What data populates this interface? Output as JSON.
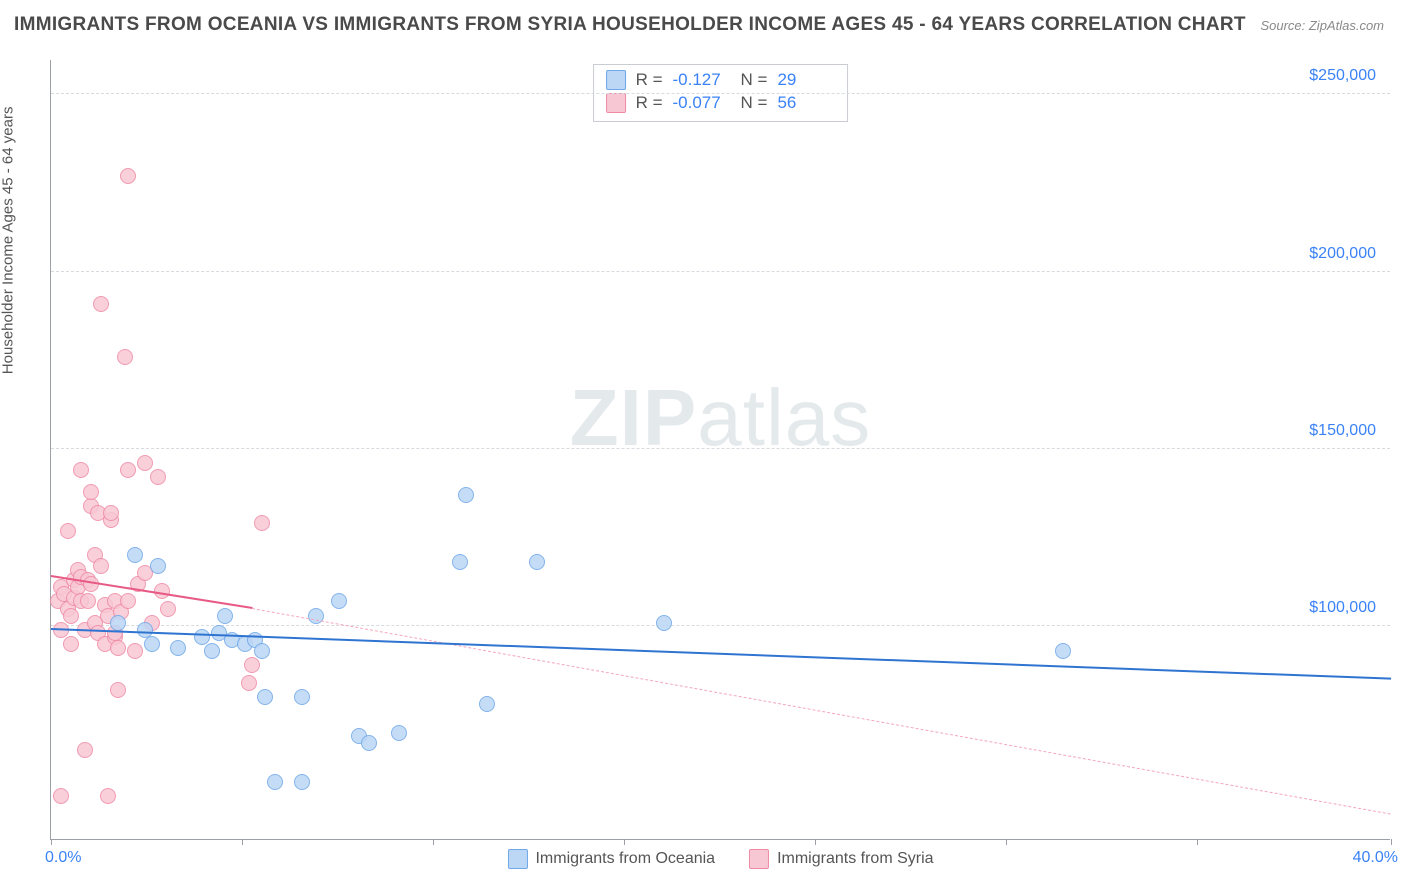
{
  "title": "IMMIGRANTS FROM OCEANIA VS IMMIGRANTS FROM SYRIA HOUSEHOLDER INCOME AGES 45 - 64 YEARS CORRELATION CHART",
  "source": "Source: ZipAtlas.com",
  "watermark_bold": "ZIP",
  "watermark_rest": "atlas",
  "chart": {
    "type": "scatter",
    "background_color": "#ffffff",
    "ylabel": "Householder Income Ages 45 - 64 years",
    "xlim": [
      0.0,
      40.0
    ],
    "ylim": [
      40000,
      260000
    ],
    "xtick_positions": [
      0,
      5.7,
      11.4,
      17.1,
      22.8,
      28.5,
      34.2,
      40.0
    ],
    "xaxis_min_label": "0.0%",
    "xaxis_max_label": "40.0%",
    "ygrid": [
      {
        "value": 100000,
        "label": "$100,000"
      },
      {
        "value": 150000,
        "label": "$150,000"
      },
      {
        "value": 200000,
        "label": "$200,000"
      },
      {
        "value": 250000,
        "label": "$250,000"
      }
    ],
    "grid_color": "#d7dbe0",
    "axis_color": "#9aa0a6",
    "point_radius": 8,
    "point_border_width": 1.5,
    "stats": [
      {
        "key": "oceania",
        "r_label": "R =",
        "r": "-0.127",
        "n_label": "N =",
        "n": "29"
      },
      {
        "key": "syria",
        "r_label": "R =",
        "r": "-0.077",
        "n_label": "N =",
        "n": "56"
      }
    ],
    "series": {
      "oceania": {
        "label": "Immigrants from Oceania",
        "fill_color": "#bcd6f5",
        "stroke_color": "#6ea8e8",
        "trend_solid": {
          "x1": 0.0,
          "y1": 99000,
          "x2": 40.0,
          "y2": 85000,
          "color": "#2f74d0",
          "width": 2.5
        },
        "points": [
          {
            "x": 2.5,
            "y": 120000
          },
          {
            "x": 3.2,
            "y": 117000
          },
          {
            "x": 2.0,
            "y": 101000
          },
          {
            "x": 2.8,
            "y": 99000
          },
          {
            "x": 3.0,
            "y": 95000
          },
          {
            "x": 3.8,
            "y": 94000
          },
          {
            "x": 4.5,
            "y": 97000
          },
          {
            "x": 4.8,
            "y": 93000
          },
          {
            "x": 5.0,
            "y": 98000
          },
          {
            "x": 5.2,
            "y": 103000
          },
          {
            "x": 5.4,
            "y": 96000
          },
          {
            "x": 5.8,
            "y": 95000
          },
          {
            "x": 6.1,
            "y": 96000
          },
          {
            "x": 6.3,
            "y": 93000
          },
          {
            "x": 6.4,
            "y": 80000
          },
          {
            "x": 6.7,
            "y": 56000
          },
          {
            "x": 7.5,
            "y": 80000
          },
          {
            "x": 7.5,
            "y": 56000
          },
          {
            "x": 7.9,
            "y": 103000
          },
          {
            "x": 8.6,
            "y": 107000
          },
          {
            "x": 9.2,
            "y": 69000
          },
          {
            "x": 9.5,
            "y": 67000
          },
          {
            "x": 10.4,
            "y": 70000
          },
          {
            "x": 12.2,
            "y": 118000
          },
          {
            "x": 12.4,
            "y": 137000
          },
          {
            "x": 13.0,
            "y": 78000
          },
          {
            "x": 14.5,
            "y": 118000
          },
          {
            "x": 18.3,
            "y": 101000
          },
          {
            "x": 30.2,
            "y": 93000
          }
        ]
      },
      "syria": {
        "label": "Immigrants from Syria",
        "fill_color": "#f8c7d4",
        "stroke_color": "#ef8aa5",
        "trend_solid": {
          "x1": 0.0,
          "y1": 114000,
          "x2": 6.0,
          "y2": 105000,
          "color": "#e85a86",
          "width": 2.5
        },
        "trend_dashed": {
          "x1": 6.0,
          "y1": 105000,
          "x2": 40.0,
          "y2": 47000,
          "color": "#f4a7bc",
          "width": 1.5
        },
        "points": [
          {
            "x": 0.2,
            "y": 107000
          },
          {
            "x": 0.3,
            "y": 52000
          },
          {
            "x": 0.3,
            "y": 99000
          },
          {
            "x": 0.3,
            "y": 111000
          },
          {
            "x": 0.4,
            "y": 109000
          },
          {
            "x": 0.5,
            "y": 105000
          },
          {
            "x": 0.5,
            "y": 127000
          },
          {
            "x": 0.6,
            "y": 103000
          },
          {
            "x": 0.6,
            "y": 95000
          },
          {
            "x": 0.7,
            "y": 113000
          },
          {
            "x": 0.7,
            "y": 108000
          },
          {
            "x": 0.8,
            "y": 116000
          },
          {
            "x": 0.8,
            "y": 111000
          },
          {
            "x": 0.9,
            "y": 114000
          },
          {
            "x": 0.9,
            "y": 107000
          },
          {
            "x": 0.9,
            "y": 144000
          },
          {
            "x": 1.0,
            "y": 99000
          },
          {
            "x": 1.0,
            "y": 65000
          },
          {
            "x": 1.1,
            "y": 107000
          },
          {
            "x": 1.1,
            "y": 113000
          },
          {
            "x": 1.2,
            "y": 134000
          },
          {
            "x": 1.2,
            "y": 138000
          },
          {
            "x": 1.2,
            "y": 112000
          },
          {
            "x": 1.3,
            "y": 120000
          },
          {
            "x": 1.3,
            "y": 101000
          },
          {
            "x": 1.4,
            "y": 132000
          },
          {
            "x": 1.4,
            "y": 98000
          },
          {
            "x": 1.5,
            "y": 191000
          },
          {
            "x": 1.5,
            "y": 117000
          },
          {
            "x": 1.6,
            "y": 95000
          },
          {
            "x": 1.6,
            "y": 106000
          },
          {
            "x": 1.7,
            "y": 103000
          },
          {
            "x": 1.7,
            "y": 52000
          },
          {
            "x": 1.8,
            "y": 130000
          },
          {
            "x": 1.8,
            "y": 132000
          },
          {
            "x": 1.9,
            "y": 107000
          },
          {
            "x": 1.9,
            "y": 97000
          },
          {
            "x": 1.9,
            "y": 98000
          },
          {
            "x": 2.0,
            "y": 94000
          },
          {
            "x": 2.0,
            "y": 82000
          },
          {
            "x": 2.1,
            "y": 104000
          },
          {
            "x": 2.2,
            "y": 176000
          },
          {
            "x": 2.3,
            "y": 144000
          },
          {
            "x": 2.3,
            "y": 227000
          },
          {
            "x": 2.3,
            "y": 107000
          },
          {
            "x": 2.5,
            "y": 93000
          },
          {
            "x": 2.6,
            "y": 112000
          },
          {
            "x": 2.8,
            "y": 146000
          },
          {
            "x": 2.8,
            "y": 115000
          },
          {
            "x": 3.0,
            "y": 101000
          },
          {
            "x": 3.2,
            "y": 142000
          },
          {
            "x": 3.3,
            "y": 110000
          },
          {
            "x": 3.5,
            "y": 105000
          },
          {
            "x": 5.9,
            "y": 84000
          },
          {
            "x": 6.0,
            "y": 89000
          },
          {
            "x": 6.3,
            "y": 129000
          }
        ]
      }
    }
  }
}
